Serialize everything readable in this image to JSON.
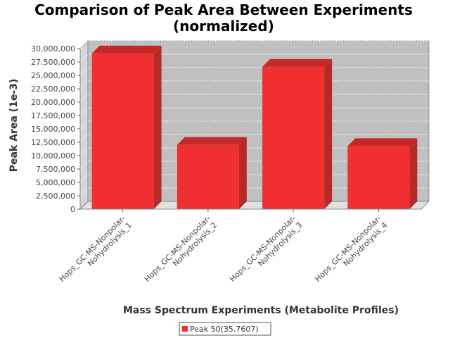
{
  "chart_data": {
    "type": "bar",
    "title_lines": [
      "Comparison of Peak Area Between Experiments",
      "(normalized)"
    ],
    "xlabel": "Mass Spectrum Experiments (Metabolite Profiles)",
    "ylabel": "Peak Area (1e-3)",
    "ylim": [
      0,
      30000000
    ],
    "yticks": [
      0,
      2500000,
      5000000,
      7500000,
      10000000,
      12500000,
      15000000,
      17500000,
      20000000,
      22500000,
      25000000,
      27500000,
      30000000
    ],
    "ytick_labels": [
      "0",
      "2,500,000",
      "5,000,000",
      "7,500,000",
      "10,000,000",
      "12,500,000",
      "15,000,000",
      "17,500,000",
      "20,000,000",
      "22,500,000",
      "25,000,000",
      "27,500,000",
      "30,000,000"
    ],
    "categories": [
      [
        "Hops_GC-MS-Nonpolar-",
        "Nohydrolysis_1"
      ],
      [
        "Hops_GC-MS-Nonpolar-",
        "Nohydrolysis_2"
      ],
      [
        "Hops_GC-MS-Nonpolar-",
        "Nohydrolysis_3"
      ],
      [
        "Hops_GC-MS-Nonpolar-",
        "Nohydrolysis_4"
      ]
    ],
    "series": [
      {
        "name": "Peak 50(35.7607)",
        "values": [
          29100000,
          12000000,
          26600000,
          11800000
        ]
      }
    ],
    "grid": true,
    "legend_position": "bottom",
    "colors": {
      "bar": "#f03030",
      "bar_top": "#c42828",
      "bar_side": "#b82a2a",
      "plot_bg": "#c0c0c0",
      "grid": "#ffffff"
    }
  }
}
